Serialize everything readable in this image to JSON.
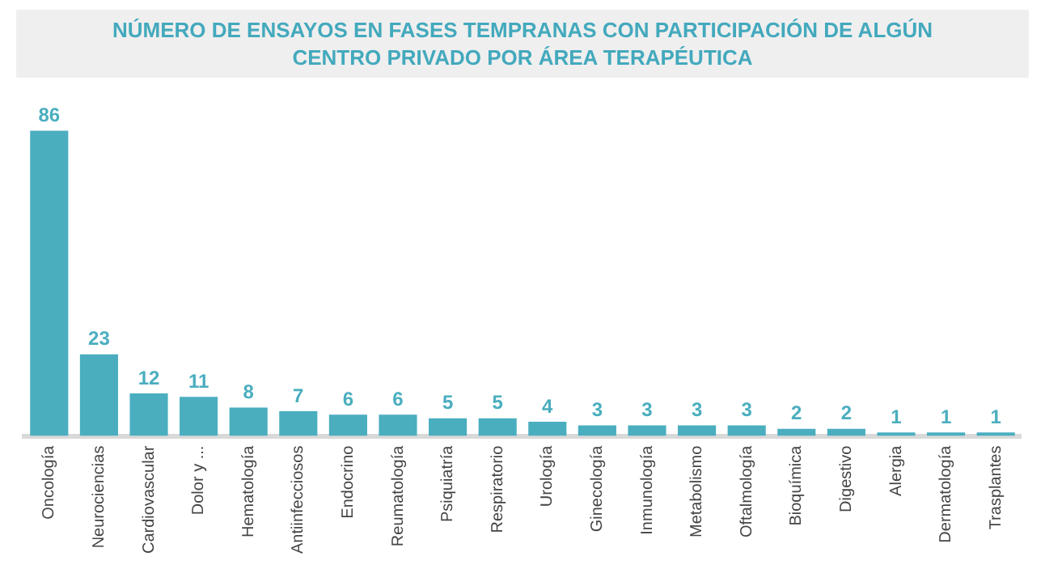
{
  "chart_data": {
    "type": "bar",
    "title": "NÚMERO DE ENSAYOS EN FASES TEMPRANAS CON PARTICIPACIÓN DE ALGÚN CENTRO PRIVADO POR ÁREA TERAPÉUTICA",
    "categories": [
      "Oncología",
      "Neurociencias",
      "Cardiovascular",
      "Dolor y ...",
      "Hematología",
      "Antiinfecciosos",
      "Endocrino",
      "Reumatología",
      "Psiquiatría",
      "Respiratorio",
      "Urología",
      "Ginecología",
      "Inmunología",
      "Metabolismo",
      "Oftalmología",
      "Bioquímica",
      "Digestivo",
      "Alergia",
      "Dermatología",
      "Trasplantes"
    ],
    "values": [
      86,
      23,
      12,
      11,
      8,
      7,
      6,
      6,
      5,
      5,
      4,
      3,
      3,
      3,
      3,
      2,
      2,
      1,
      1,
      1
    ],
    "color": "#4aaebf",
    "data_labels": true,
    "grid": false,
    "legend": false
  }
}
